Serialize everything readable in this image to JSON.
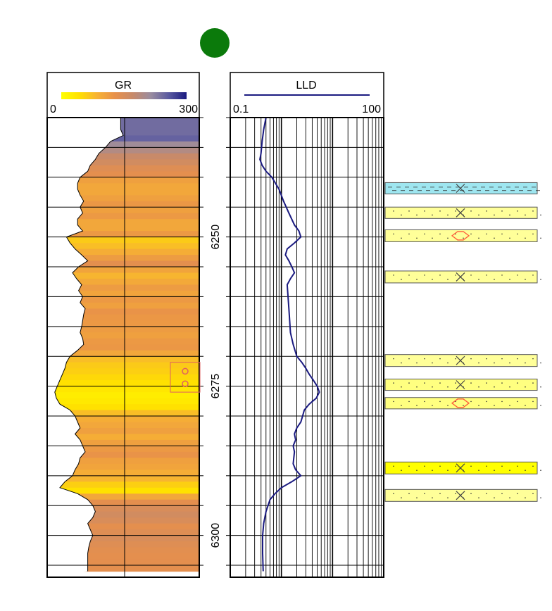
{
  "well_symbol": {
    "color": "#0b7a0b"
  },
  "gr_track": {
    "curve_name": "GR",
    "scale_min": "0",
    "scale_max": "300",
    "range": [
      0,
      300
    ],
    "gradient": [
      "#ffff00",
      "#ffe000",
      "#f7b233",
      "#e8904a",
      "#c78a6a",
      "#9a8ca0",
      "#5a5aa0",
      "#1a1a80"
    ]
  },
  "depth_track": {
    "labels": [
      "6250",
      "6275",
      "6300"
    ],
    "values": [
      6250,
      6275,
      6300
    ],
    "range": [
      6230,
      6307
    ],
    "marker": {
      "top": 6271,
      "bottom": 6276,
      "color": "#e06060"
    }
  },
  "lld_track": {
    "curve_name": "LLD",
    "scale_min": "0.1",
    "scale_max": "100",
    "range": [
      0.1,
      100
    ],
    "scale": "log",
    "curve_color": "#1a1a80"
  },
  "gr_profile": [
    [
      6230,
      145
    ],
    [
      6232,
      145
    ],
    [
      6233,
      150
    ],
    [
      6234,
      125
    ],
    [
      6235,
      115
    ],
    [
      6236,
      102
    ],
    [
      6237,
      95
    ],
    [
      6238,
      85
    ],
    [
      6239,
      80
    ],
    [
      6240,
      65
    ],
    [
      6241,
      60
    ],
    [
      6242,
      60
    ],
    [
      6243,
      65
    ],
    [
      6244,
      72
    ],
    [
      6245,
      65
    ],
    [
      6246,
      70
    ],
    [
      6247,
      60
    ],
    [
      6248,
      60
    ],
    [
      6249,
      70
    ],
    [
      6250,
      38
    ],
    [
      6251,
      45
    ],
    [
      6252,
      55
    ],
    [
      6253,
      68
    ],
    [
      6254,
      80
    ],
    [
      6255,
      62
    ],
    [
      6256,
      50
    ],
    [
      6257,
      58
    ],
    [
      6258,
      68
    ],
    [
      6259,
      62
    ],
    [
      6260,
      70
    ],
    [
      6261,
      65
    ],
    [
      6262,
      75
    ],
    [
      6263,
      72
    ],
    [
      6264,
      70
    ],
    [
      6265,
      68
    ],
    [
      6266,
      65
    ],
    [
      6267,
      70
    ],
    [
      6268,
      72
    ],
    [
      6269,
      60
    ],
    [
      6270,
      45
    ],
    [
      6271,
      38
    ],
    [
      6272,
      35
    ],
    [
      6273,
      30
    ],
    [
      6274,
      25
    ],
    [
      6275,
      20
    ],
    [
      6276,
      15
    ],
    [
      6277,
      18
    ],
    [
      6278,
      25
    ],
    [
      6279,
      45
    ],
    [
      6280,
      55
    ],
    [
      6281,
      60
    ],
    [
      6282,
      65
    ],
    [
      6283,
      55
    ],
    [
      6284,
      65
    ],
    [
      6285,
      70
    ],
    [
      6286,
      75
    ],
    [
      6287,
      65
    ],
    [
      6288,
      62
    ],
    [
      6289,
      55
    ],
    [
      6290,
      50
    ],
    [
      6291,
      35
    ],
    [
      6292,
      25
    ],
    [
      6293,
      60
    ],
    [
      6294,
      80
    ],
    [
      6295,
      90
    ],
    [
      6296,
      95
    ],
    [
      6297,
      90
    ],
    [
      6298,
      80
    ],
    [
      6299,
      85
    ],
    [
      6300,
      90
    ],
    [
      6301,
      85
    ],
    [
      6302,
      82
    ],
    [
      6303,
      80
    ],
    [
      6304,
      80
    ],
    [
      6305,
      80
    ],
    [
      6306,
      80
    ]
  ],
  "lld_profile": [
    [
      6230,
      0.5
    ],
    [
      6232,
      0.45
    ],
    [
      6234,
      0.42
    ],
    [
      6236,
      0.4
    ],
    [
      6237,
      0.38
    ],
    [
      6238,
      0.42
    ],
    [
      6239,
      0.5
    ],
    [
      6240,
      0.65
    ],
    [
      6242,
      0.9
    ],
    [
      6244,
      1.1
    ],
    [
      6246,
      1.4
    ],
    [
      6248,
      1.8
    ],
    [
      6249,
      2.2
    ],
    [
      6250,
      2.4
    ],
    [
      6251,
      1.8
    ],
    [
      6252,
      1.3
    ],
    [
      6253,
      1.2
    ],
    [
      6254,
      1.4
    ],
    [
      6255,
      1.6
    ],
    [
      6256,
      1.8
    ],
    [
      6257,
      1.5
    ],
    [
      6258,
      1.3
    ],
    [
      6260,
      1.35
    ],
    [
      6262,
      1.4
    ],
    [
      6264,
      1.45
    ],
    [
      6266,
      1.5
    ],
    [
      6268,
      1.7
    ],
    [
      6270,
      2.0
    ],
    [
      6271,
      2.5
    ],
    [
      6272,
      3.0
    ],
    [
      6273,
      3.5
    ],
    [
      6274,
      4.2
    ],
    [
      6275,
      5.0
    ],
    [
      6276,
      5.5
    ],
    [
      6277,
      4.8
    ],
    [
      6278,
      3.5
    ],
    [
      6279,
      2.8
    ],
    [
      6280,
      2.6
    ],
    [
      6281,
      2.4
    ],
    [
      6282,
      2.0
    ],
    [
      6283,
      1.8
    ],
    [
      6284,
      1.9
    ],
    [
      6285,
      1.7
    ],
    [
      6286,
      1.8
    ],
    [
      6287,
      1.75
    ],
    [
      6288,
      1.7
    ],
    [
      6289,
      1.9
    ],
    [
      6290,
      2.4
    ],
    [
      6291,
      1.6
    ],
    [
      6292,
      1.0
    ],
    [
      6293,
      0.75
    ],
    [
      6294,
      0.6
    ],
    [
      6296,
      0.5
    ],
    [
      6298,
      0.45
    ],
    [
      6300,
      0.43
    ],
    [
      6303,
      0.43
    ],
    [
      6306,
      0.44
    ]
  ],
  "lithology_intervals": [
    {
      "top": 6240.9,
      "bottom": 6242.8,
      "fill": "#9ee6f0",
      "pattern": "shale-dash",
      "symbol": "cross"
    },
    {
      "top": 6245.0,
      "bottom": 6246.9,
      "fill": "#ffff99",
      "pattern": "dots",
      "symbol": "cross"
    },
    {
      "top": 6248.8,
      "bottom": 6250.8,
      "fill": "#ffff99",
      "pattern": "dots",
      "symbol": "show"
    },
    {
      "top": 6255.7,
      "bottom": 6257.7,
      "fill": "#ffff99",
      "pattern": "dots",
      "symbol": "cross"
    },
    {
      "top": 6269.7,
      "bottom": 6271.7,
      "fill": "#ffff99",
      "pattern": "dots",
      "symbol": "cross"
    },
    {
      "top": 6273.8,
      "bottom": 6275.7,
      "fill": "#ffff80",
      "pattern": "dots",
      "symbol": "cross"
    },
    {
      "top": 6276.9,
      "bottom": 6278.8,
      "fill": "#ffff80",
      "pattern": "dots",
      "symbol": "show"
    },
    {
      "top": 6287.7,
      "bottom": 6289.7,
      "fill": "#ffff00",
      "pattern": "dots",
      "symbol": "cross"
    },
    {
      "top": 6292.3,
      "bottom": 6294.3,
      "fill": "#ffff99",
      "pattern": "dots",
      "symbol": "cross"
    }
  ]
}
